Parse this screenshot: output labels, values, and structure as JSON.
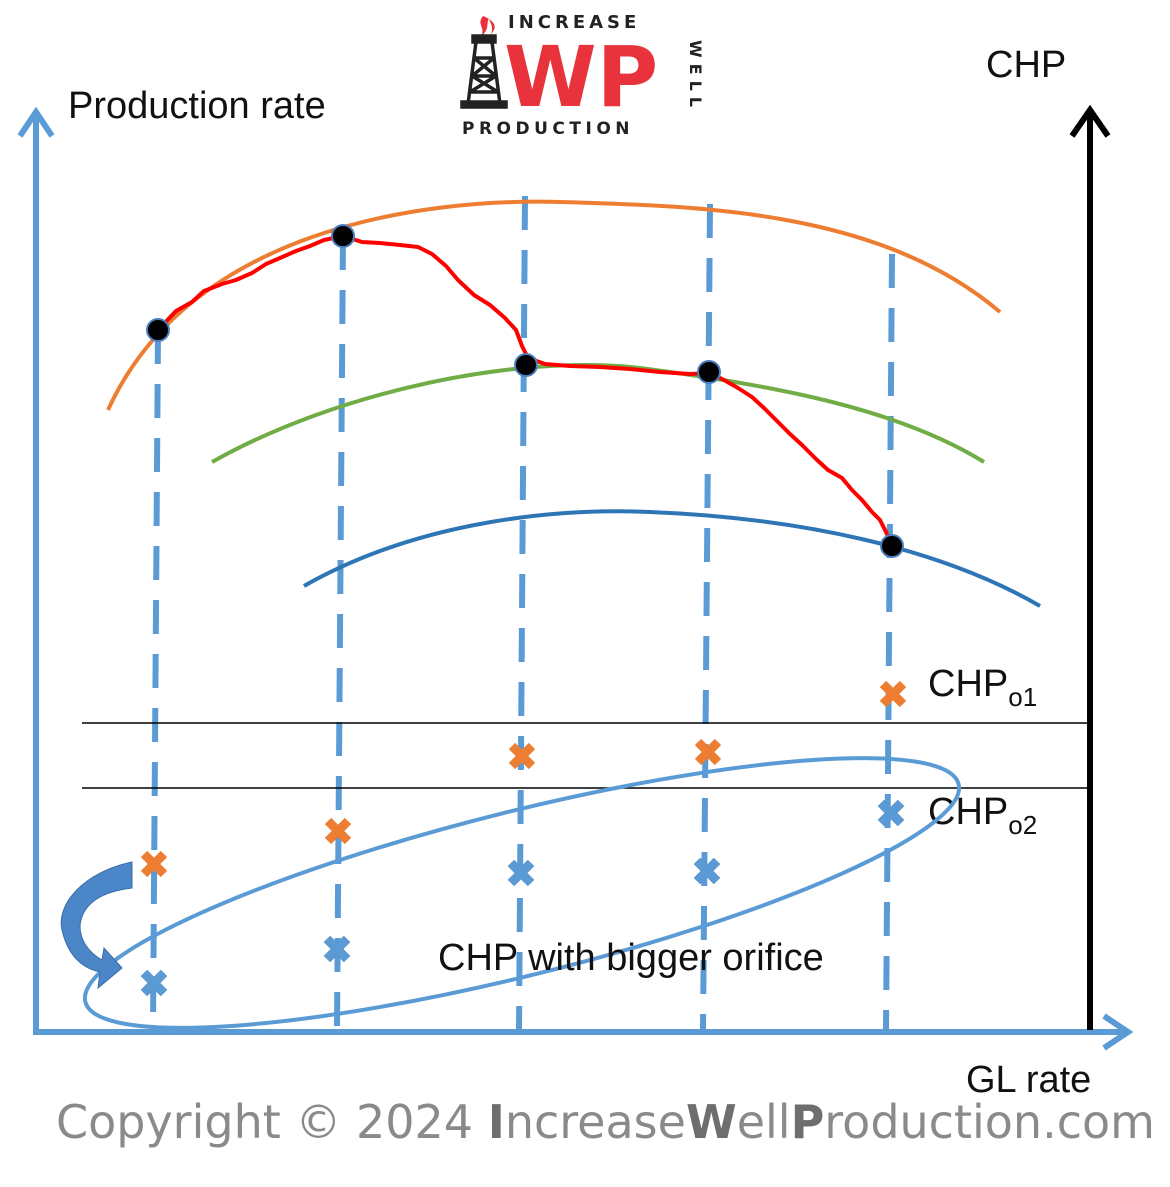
{
  "logo": {
    "top_text": "INCREASE",
    "big_text": "WP",
    "side_text": "WELL",
    "bottom_text": "PRODUCTION",
    "brand_color": "#e8323c"
  },
  "axes": {
    "left_label": "Production rate",
    "right_label": "CHP",
    "bottom_label": "GL rate"
  },
  "levels": {
    "chp_o1": {
      "base": "CHP",
      "subscript": "o1"
    },
    "chp_o2": {
      "base": "CHP",
      "subscript": "o2"
    }
  },
  "annotation": "CHP with bigger orifice",
  "copyright": {
    "prefix": "Copyright © 2024 ",
    "parts": [
      "I",
      "ncrease",
      "W",
      "ell",
      "P",
      "roduction.com"
    ]
  },
  "colors": {
    "orange_curve": "#ed7d31",
    "green_curve": "#70ad47",
    "blue_curve": "#2e75b6",
    "red_path": "#ff0000",
    "axis_blue": "#5b9bd5",
    "orange_marker": "#ed7d31",
    "blue_marker": "#5b9bd5"
  },
  "icons": [
    "gas-flame-icon",
    "derrick-icon",
    "curved-arrow-icon"
  ]
}
